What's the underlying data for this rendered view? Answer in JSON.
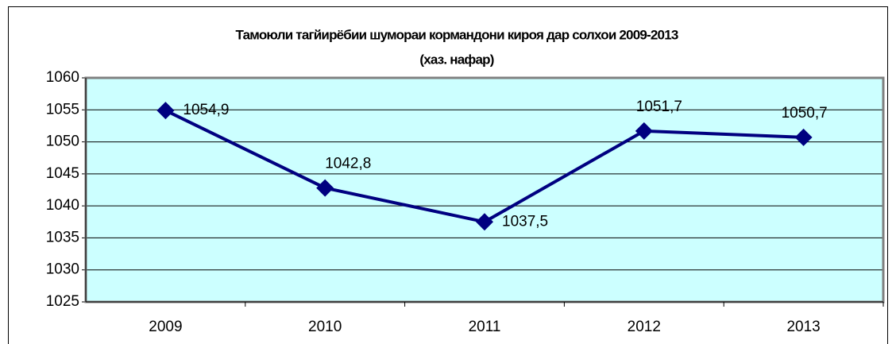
{
  "chart_data": {
    "type": "line",
    "title": "Тамоюли тагйирёбии шумораи кормандони кироя дар солхои 2009-2013",
    "subtitle": "(хаз. нафар)",
    "categories": [
      "2009",
      "2010",
      "2011",
      "2012",
      "2013"
    ],
    "series": [
      {
        "name": "",
        "color": "#000080",
        "values": [
          1054.9,
          1042.8,
          1037.5,
          1051.7,
          1050.7
        ],
        "value_labels": [
          "1054,9",
          "1042,8",
          "1037,5",
          "1051,7",
          "1050,7"
        ]
      }
    ],
    "ylim": [
      1025,
      1060
    ],
    "yticks": [
      1025,
      1030,
      1035,
      1040,
      1045,
      1050,
      1055,
      1060
    ],
    "grid": true
  }
}
